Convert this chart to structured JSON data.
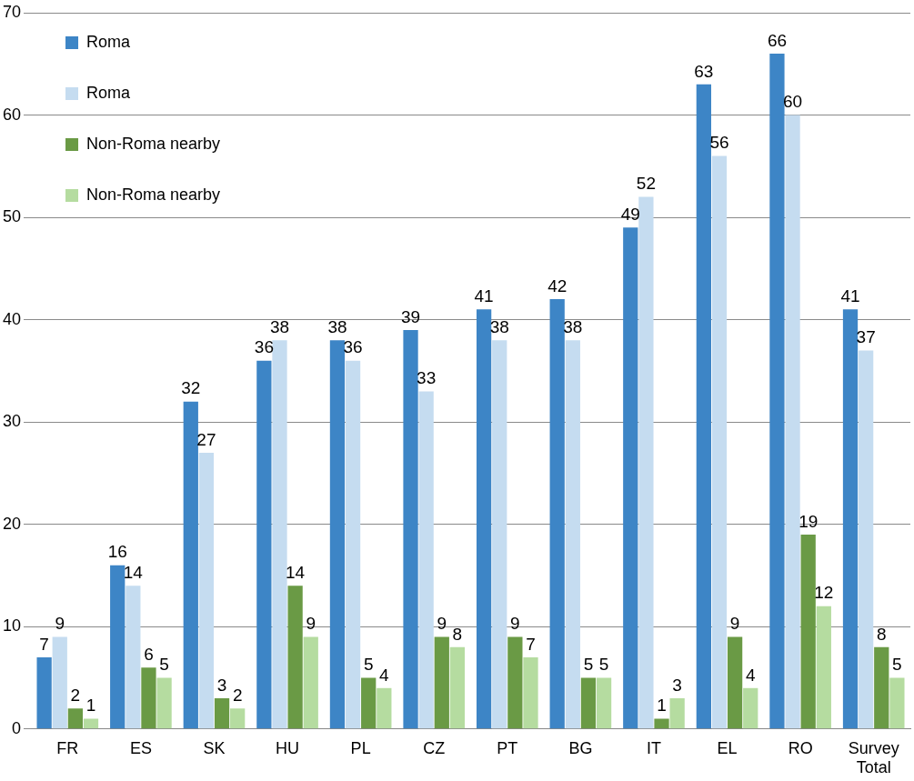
{
  "chart_data": {
    "type": "bar",
    "categories": [
      "FR",
      "ES",
      "SK",
      "HU",
      "PL",
      "CZ",
      "PT",
      "BG",
      "IT",
      "EL",
      "RO",
      "Survey Total"
    ],
    "series": [
      {
        "name": "Roma",
        "color": "#3d85c6",
        "values": [
          7,
          16,
          32,
          36,
          38,
          39,
          41,
          42,
          49,
          63,
          66,
          41
        ]
      },
      {
        "name": "Roma",
        "color": "#c5dcf0",
        "values": [
          9,
          14,
          27,
          38,
          36,
          33,
          38,
          38,
          52,
          56,
          60,
          37
        ]
      },
      {
        "name": "Non-Roma nearby",
        "color": "#6a9a45",
        "values": [
          2,
          6,
          3,
          14,
          5,
          9,
          9,
          5,
          1,
          9,
          19,
          8
        ]
      },
      {
        "name": "Non-Roma nearby",
        "color": "#b5dca0",
        "values": [
          1,
          5,
          2,
          9,
          4,
          8,
          7,
          5,
          3,
          4,
          12,
          5
        ]
      }
    ],
    "ylim": [
      0,
      70
    ],
    "yticks": [
      0,
      10,
      20,
      30,
      40,
      50,
      60,
      70
    ],
    "grid": "y",
    "legend": "top left",
    "data_labels": true
  }
}
